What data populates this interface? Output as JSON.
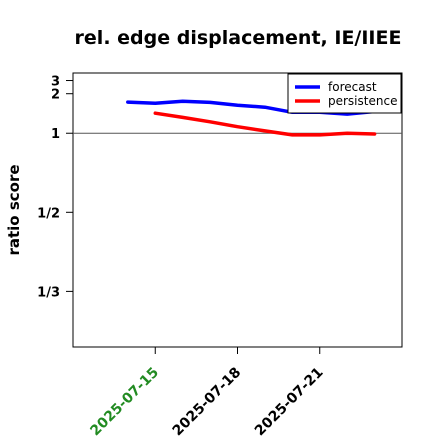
{
  "chart_data": {
    "type": "line",
    "title": "rel. edge displacement, IE/IIEE",
    "ylabel": "ratio score",
    "xlabel": "",
    "y_scale": "reciprocal",
    "y_ticks": [
      {
        "value": 3,
        "label": "3"
      },
      {
        "value": 2,
        "label": "2"
      },
      {
        "value": 1,
        "label": "1"
      },
      {
        "value": 0.5,
        "label": "1/2"
      },
      {
        "value": 0.3333,
        "label": "1/3"
      }
    ],
    "reference_line": 1,
    "x_ticks": [
      {
        "date": "2025-07-15",
        "label": "2025-07-15",
        "color": "#228b22"
      },
      {
        "date": "2025-07-18",
        "label": "2025-07-18",
        "color": "#000000"
      },
      {
        "date": "2025-07-21",
        "label": "2025-07-21",
        "color": "#000000"
      }
    ],
    "xlim": [
      "2025-07-12",
      "2025-07-24"
    ],
    "ylim": [
      0.27,
      4.2
    ],
    "legend": {
      "position": "top-right"
    },
    "series": [
      {
        "name": "forecast",
        "color": "#0000ff",
        "x": [
          "2025-07-14",
          "2025-07-15",
          "2025-07-16",
          "2025-07-17",
          "2025-07-18",
          "2025-07-19",
          "2025-07-20",
          "2025-07-21",
          "2025-07-22",
          "2025-07-23"
        ],
        "values": [
          1.65,
          1.61,
          1.68,
          1.64,
          1.55,
          1.49,
          1.36,
          1.36,
          1.32,
          1.38
        ]
      },
      {
        "name": "persistence",
        "color": "#ff0000",
        "x": [
          "2025-07-15",
          "2025-07-16",
          "2025-07-17",
          "2025-07-18",
          "2025-07-19",
          "2025-07-20",
          "2025-07-21",
          "2025-07-22",
          "2025-07-23"
        ],
        "values": [
          1.34,
          1.25,
          1.17,
          1.09,
          1.03,
          0.98,
          0.98,
          1.0,
          0.99
        ]
      }
    ]
  }
}
